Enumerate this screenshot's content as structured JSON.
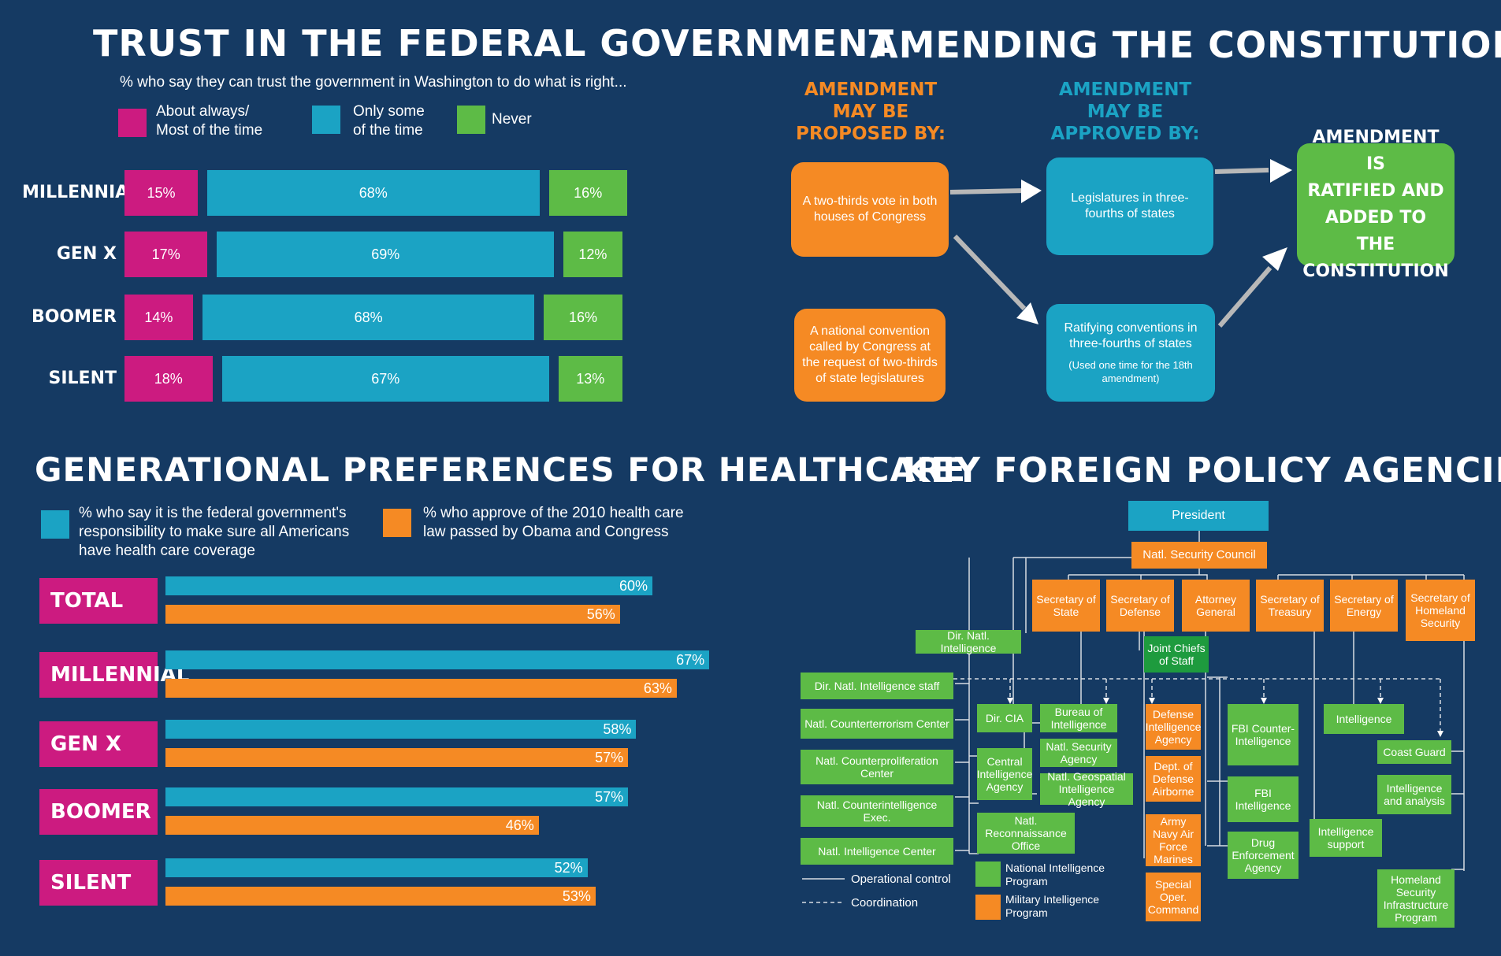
{
  "colors": {
    "background": "#153a63",
    "magenta": "#cc1b80",
    "teal": "#1ba3c4",
    "green": "#5dbb46",
    "orange": "#f58a24",
    "white": "#ffffff"
  },
  "trust": {
    "title": "TRUST IN THE FEDERAL GOVERNMENT",
    "subtitle": "% who say they can trust the government in Washington to do what is right...",
    "legend": [
      {
        "label_line1": "About always/",
        "label_line2": "Most of the time"
      },
      {
        "label_line1": "Only some",
        "label_line2": "of the time"
      },
      {
        "label_line1": "Never",
        "label_line2": ""
      }
    ]
  },
  "healthcare": {
    "title": "GENERATIONAL PREFERENCES FOR HEALTHCARE",
    "legend": [
      {
        "line1": "% who say it is the federal government's",
        "line2": "responsibility to make sure all Americans",
        "line3": "have health care coverage"
      },
      {
        "line1": "% who approve of the 2010 health care",
        "line2": "law passed by Obama and Congress",
        "line3": ""
      }
    ]
  },
  "chart_data": [
    {
      "type": "bar",
      "stacked": true,
      "orientation": "horizontal",
      "title": "TRUST IN THE FEDERAL GOVERNMENT",
      "subtitle": "% who say they can trust the government in Washington to do what is right...",
      "categories": [
        "MILLENNIAL",
        "GEN X",
        "BOOMER",
        "SILENT"
      ],
      "series": [
        {
          "name": "About always/ Most of the time",
          "color": "#cc1b80",
          "values": [
            15,
            17,
            14,
            18
          ],
          "labels": [
            "15%",
            "17%",
            "14%",
            "18%"
          ]
        },
        {
          "name": "Only some of the time",
          "color": "#1ba3c4",
          "values": [
            68,
            69,
            68,
            67
          ],
          "labels": [
            "68%",
            "69%",
            "68%",
            "67%"
          ]
        },
        {
          "name": "Never",
          "color": "#5dbb46",
          "values": [
            16,
            12,
            16,
            13
          ],
          "labels": [
            "16%",
            "12%",
            "16%",
            "13%"
          ]
        }
      ]
    },
    {
      "type": "bar",
      "orientation": "horizontal",
      "title": "GENERATIONAL PREFERENCES FOR HEALTHCARE",
      "categories": [
        "TOTAL",
        "MILLENNIAL",
        "GEN X",
        "BOOMER",
        "SILENT"
      ],
      "series": [
        {
          "name": "% who say it is the federal government's responsibility to make sure all Americans have health care coverage",
          "color": "#1ba3c4",
          "values": [
            60,
            67,
            58,
            57,
            52
          ],
          "labels": [
            "60%",
            "67%",
            "58%",
            "57%",
            "52%"
          ]
        },
        {
          "name": "% who approve of the 2010 health care law passed by Obama and Congress",
          "color": "#f58a24",
          "values": [
            56,
            63,
            57,
            46,
            53
          ],
          "labels": [
            "56%",
            "63%",
            "57%",
            "46%",
            "53%"
          ]
        }
      ]
    }
  ],
  "constitution": {
    "title": "AMENDING THE CONSTITUTION",
    "proposed_header": [
      "AMENDMENT",
      "MAY BE",
      "PROPOSED BY:"
    ],
    "approved_header": [
      "AMENDMENT",
      "MAY BE",
      "APPROVED BY:"
    ],
    "proposed_1": "A two-thirds vote in both houses of Congress",
    "proposed_2": "A national convention called by Congress at the request of two-thirds of state legislatures",
    "approved_1": "Legislatures in three-fourths of states",
    "approved_2": "Ratifying conventions in three-fourths of states",
    "approved_2_note": "(Used one time for the 18th amendment)",
    "result": [
      "AMENDMENT IS",
      "RATIFIED AND",
      "ADDED TO THE",
      "CONSTITUTION"
    ]
  },
  "agencies": {
    "title": "KEY FOREIGN POLICY AGENCIES",
    "nodes": {
      "president": "President",
      "nsc": "Natl. Security Council",
      "sec_state": "Secretary of State",
      "sec_defense": "Secretary of Defense",
      "attorney_general": "Attorney General",
      "sec_treasury": "Secretary of Treasury",
      "sec_energy": "Secretary of Energy",
      "sec_homeland": "Secretary of Homeland Security",
      "dni": "Dir. Natl. Intelligence",
      "jcs": "Joint Chiefs of Staff",
      "dni_staff": "Dir. Natl. Intelligence staff",
      "nctc": "Natl. Counterterrorism Center",
      "ncpc": "Natl. Counterproliferation Center",
      "ncix": "Natl. Counterintelligence Exec.",
      "nic": "Natl. Intelligence Center",
      "dir_cia": "Dir. CIA",
      "cia": "Central Intelligence Agency",
      "bureau_intel": "Bureau of Intelligence",
      "nsa": "Natl. Security Agency",
      "nga": "Natl. Geospatial Intelligence Agency",
      "nro": "Natl. Reconnaissance Office",
      "dia": "Defense Intelligence Agency",
      "airborne": "Dept. of Defense Airborne",
      "military": "Army Navy Air Force Marines",
      "special_ops": "Special Oper. Command",
      "fbi_ci": "FBI Counter-Intelligence",
      "fbi_intel": "FBI Intelligence",
      "dea": "Drug Enforcement Agency",
      "treasury_intel": "Intelligence support",
      "energy_intel": "Intelligence",
      "coast_guard": "Coast Guard",
      "ia": "Intelligence and analysis",
      "hsip": "Homeland Security Infrastructure Program"
    },
    "legend": {
      "operational": "Operational control",
      "coordination": "Coordination",
      "nip": "National Intelligence Program",
      "mip": "Military Intelligence Program"
    }
  }
}
